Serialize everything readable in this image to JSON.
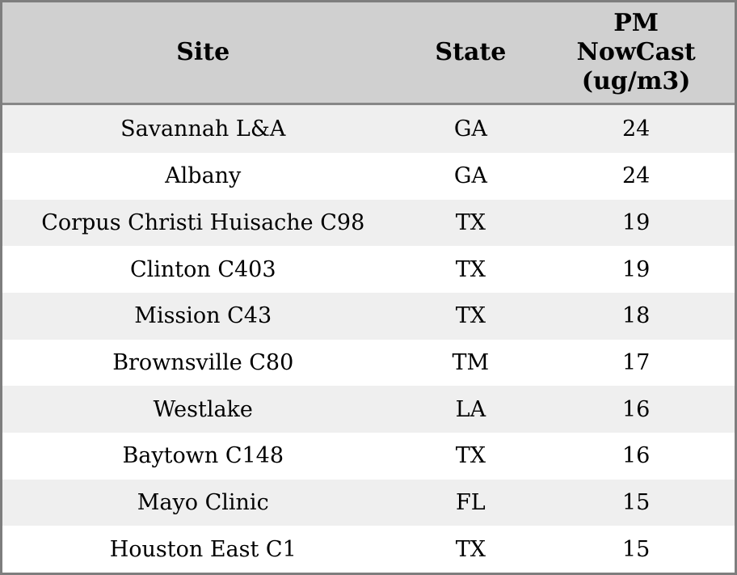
{
  "chart_data": {
    "type": "table",
    "columns": [
      "Site",
      "State",
      "PM NowCast (ug/m3)"
    ],
    "rows": [
      [
        "Savannah L&A",
        "GA",
        24
      ],
      [
        "Albany",
        "GA",
        24
      ],
      [
        "Corpus Christi Huisache C98",
        "TX",
        19
      ],
      [
        "Clinton C403",
        "TX",
        19
      ],
      [
        "Mission C43",
        "TX",
        18
      ],
      [
        "Brownsville C80",
        "TM",
        17
      ],
      [
        "Westlake",
        "LA",
        16
      ],
      [
        "Baytown C148",
        "TX",
        16
      ],
      [
        "Mayo Clinic",
        "FL",
        15
      ],
      [
        "Houston East C1",
        "TX",
        15
      ]
    ]
  },
  "header_display": [
    "Site",
    "State",
    "PM\nNowCast\n(ug/m3)"
  ],
  "colors": {
    "header_bg": "#d0d0d0",
    "row_stripe_bg": "#efefef",
    "row_bg": "#ffffff",
    "outer_border": "#7e7e7e",
    "header_divider": "#878787",
    "text": "#000000"
  }
}
